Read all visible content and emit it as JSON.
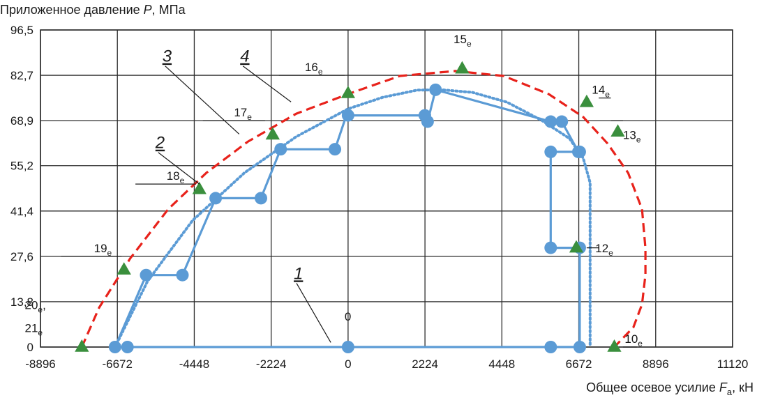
{
  "chart_data": {
    "type": "line",
    "ylabel": {
      "text": "Приложенное давление ",
      "symbol": "P",
      "unit": ", МПа"
    },
    "xlabel": {
      "text": "Общее осевое усилие ",
      "symbol": "F",
      "sub": "a",
      "unit": ", кН"
    },
    "xlim": [
      -8896,
      11120
    ],
    "ylim": [
      0,
      96.5
    ],
    "xticks": [
      -8896,
      -6672,
      -4448,
      -2224,
      0,
      2224,
      4448,
      6672,
      8896,
      11120
    ],
    "yticks": [
      0,
      13.8,
      27.6,
      41.4,
      55.2,
      68.9,
      82.7,
      96.5
    ],
    "xtick_labels": [
      "-8896",
      "-6672",
      "-4448",
      "-2224",
      "0",
      "2224",
      "4448",
      "6672",
      "8896",
      "11120"
    ],
    "ytick_labels": [
      "0",
      "13,8",
      "27,6",
      "41,4",
      "55,2",
      "68,9",
      "82,7",
      "96,5"
    ],
    "grid": true,
    "colors": {
      "path": "#5b9bd5",
      "outer_envelope": "#e8221b",
      "inner_envelope": "#5b9bd5",
      "marker_triangle": "#3a8f3d",
      "grid": "#2b2b2b"
    },
    "load_path": {
      "name": "",
      "x": [
        -6380,
        -6740,
        -5840,
        -4790,
        -3830,
        -2520,
        -1950,
        -380,
        -50,
        2220,
        2300,
        2530,
        5860,
        6180,
        6660,
        6700,
        5860,
        5860,
        6700,
        6700,
        6700,
        5860,
        0,
        -6380
      ],
      "y": [
        0,
        0,
        21.9,
        21.9,
        45.3,
        45.3,
        60.2,
        60.2,
        70.5,
        70.5,
        68.6,
        78.3,
        68.6,
        68.6,
        59.4,
        59.4,
        59.4,
        30.2,
        30.2,
        0,
        0,
        0,
        0,
        0
      ]
    },
    "vertex_markers": [
      [
        -6740,
        0
      ],
      [
        -6380,
        0
      ],
      [
        -5840,
        21.9
      ],
      [
        -4790,
        21.9
      ],
      [
        -3830,
        45.3
      ],
      [
        -2520,
        45.3
      ],
      [
        -1950,
        60.2
      ],
      [
        -380,
        60.2
      ],
      [
        0,
        70.5
      ],
      [
        2220,
        70.5
      ],
      [
        2300,
        68.6
      ],
      [
        2530,
        78.3
      ],
      [
        5860,
        68.6
      ],
      [
        6180,
        68.6
      ],
      [
        6660,
        59.4
      ],
      [
        6700,
        59.4
      ],
      [
        5860,
        59.4
      ],
      [
        5860,
        30.2
      ],
      [
        6700,
        30.2
      ],
      [
        6700,
        0
      ],
      [
        5860,
        0
      ],
      [
        0,
        0
      ]
    ],
    "inner_envelope": {
      "name": "",
      "x": [
        -6740,
        -5800,
        -4500,
        -3000,
        -1500,
        0,
        1000,
        2000,
        2700,
        3600,
        4600,
        5600,
        6400,
        6800,
        7000,
        7000
      ],
      "y": [
        0,
        20,
        38.5,
        53,
        64,
        72.5,
        76,
        78.2,
        78.3,
        77.5,
        74.5,
        69,
        63.5,
        57.5,
        50,
        0
      ]
    },
    "outer_envelope": {
      "name": "",
      "x": [
        -7700,
        -7200,
        -6300,
        -5200,
        -4100,
        -2900,
        -1500,
        0,
        1500,
        3100,
        4500,
        5800,
        6800,
        7500,
        8100,
        8500,
        8600,
        8600,
        8500,
        8250,
        7700
      ],
      "y": [
        0,
        12,
        27,
        42,
        53,
        62.5,
        71,
        77,
        82.5,
        84,
        82.5,
        77,
        70,
        62,
        53,
        42,
        30,
        22,
        13,
        6,
        0
      ]
    },
    "triangle_points": [
      {
        "id": "10",
        "x": 7700,
        "y": 0
      },
      {
        "id": "12",
        "x": 6600,
        "y": 30.2
      },
      {
        "id": "13",
        "x": 7800,
        "y": 65.5
      },
      {
        "id": "14",
        "x": 6900,
        "y": 74.5
      },
      {
        "id": "15",
        "x": 3300,
        "y": 84.7
      },
      {
        "id": "16",
        "x": 0,
        "y": 77.2
      },
      {
        "id": "17",
        "x": -2180,
        "y": 64.6
      },
      {
        "id": "18",
        "x": -4300,
        "y": 48
      },
      {
        "id": "19",
        "x": -6480,
        "y": 23.5
      },
      {
        "id": "20_21",
        "x": -7700,
        "y": 0
      }
    ],
    "point_labels": [
      {
        "text": "10",
        "sub": "е",
        "x": 8000,
        "y": 0
      },
      {
        "text": "12",
        "sub": "е",
        "x": 7150,
        "y": 27.6
      },
      {
        "text": "13",
        "sub": "е",
        "x": 7950,
        "y": 62
      },
      {
        "text": "14",
        "sub": "е",
        "x": 7050,
        "y": 75.8
      },
      {
        "text": "15",
        "sub": "е",
        "x": 3050,
        "y": 91.2
      },
      {
        "text": "16",
        "sub": "е",
        "x": -1250,
        "y": 82.7
      },
      {
        "text": "17",
        "sub": "е",
        "x": -3300,
        "y": 68.9
      },
      {
        "text": "18",
        "sub": "е",
        "x": -5250,
        "y": 49.6
      },
      {
        "text": "19",
        "sub": "е",
        "x": -7350,
        "y": 27.6
      },
      {
        "text": "20",
        "sub": "е",
        "x": -9350,
        "y": 10.3,
        "suffix": ","
      },
      {
        "text": "21",
        "sub": "е",
        "x": -9350,
        "y": 3.3
      },
      {
        "text": "0",
        "sub": "",
        "x": -100,
        "y": 6.8
      }
    ],
    "leader_lines": [
      {
        "x1": -8300,
        "y1": 27.6,
        "x2": -6550,
        "y2": 27.6
      },
      {
        "x1": -6150,
        "y1": 49.6,
        "x2": -4400,
        "y2": 49.6
      },
      {
        "x1": -4200,
        "y1": 68.9,
        "x2": -2400,
        "y2": 68.9
      },
      {
        "x1": -2000,
        "y1": 82.7,
        "x2": -100,
        "y2": 82.7
      },
      {
        "x1": 7600,
        "y1": 68.9,
        "x2": 7950,
        "y2": 68.9
      },
      {
        "x1": 7250,
        "y1": 75.8,
        "x2": 7600,
        "y2": 75.8
      },
      {
        "x1": 6900,
        "y1": 30.2,
        "x2": 7250,
        "y2": 30.2
      },
      {
        "x1": 8350,
        "y1": 0,
        "x2": 7950,
        "y2": 0
      }
    ],
    "callouts": [
      {
        "text": "1",
        "x": -1450,
        "y": 20.7,
        "tx": -500,
        "ty": 1.4
      },
      {
        "text": "2",
        "x": -5450,
        "y": 60.5,
        "tx": -4300,
        "ty": 49.6
      },
      {
        "text": "3",
        "x": -5250,
        "y": 86.8,
        "tx": -3150,
        "ty": 64.8
      },
      {
        "text": "4",
        "x": -3000,
        "y": 86.8,
        "tx": -1650,
        "ty": 74.6
      }
    ]
  }
}
